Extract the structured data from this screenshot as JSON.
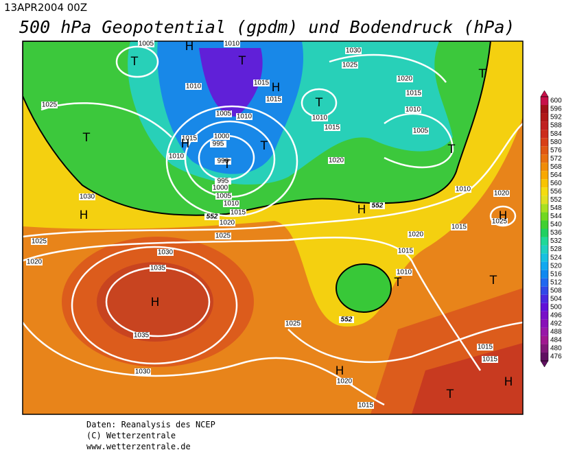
{
  "header": {
    "date": "13APR2004 00Z",
    "title": "500 hPa Geopotential (gpdm) und Bodendruck (hPa)"
  },
  "map": {
    "isobar_labels": [
      1005,
      1010,
      1030,
      1025,
      1020,
      1015,
      1010,
      1015,
      1015,
      1010,
      1025,
      1005,
      1010,
      1010,
      1015,
      1005,
      1015,
      1000,
      995,
      1010,
      990,
      1020,
      995,
      1000,
      1005,
      1010,
      1015,
      1030,
      1020,
      1025,
      1010,
      1020,
      1015,
      1020,
      1025,
      1015,
      1020,
      1030,
      1035,
      1010,
      1025,
      1035,
      1030,
      1020,
      1015,
      1015,
      1015,
      1025
    ],
    "contour_labels": [
      552,
      552,
      552
    ],
    "pressure_centers": [
      "T",
      "H",
      "T",
      "H",
      "T",
      "T",
      "T",
      "H",
      "T",
      "T",
      "T",
      "H",
      "H",
      "H",
      "T",
      "H",
      "T",
      "H",
      "T",
      "H"
    ]
  },
  "colorbar": {
    "levels": [
      600,
      596,
      592,
      588,
      584,
      580,
      576,
      572,
      568,
      564,
      560,
      556,
      552,
      548,
      544,
      540,
      536,
      532,
      528,
      524,
      520,
      516,
      512,
      508,
      504,
      500,
      496,
      492,
      488,
      484,
      480,
      476
    ],
    "colors": [
      "#c8104a",
      "#a01018",
      "#b01818",
      "#c02020",
      "#cc2c1c",
      "#d84018",
      "#e05814",
      "#e87010",
      "#f08c08",
      "#f8a800",
      "#f8c400",
      "#f4dc10",
      "#e0e020",
      "#a8e020",
      "#70d820",
      "#40d030",
      "#20d060",
      "#20d898",
      "#20d0c0",
      "#18c0e0",
      "#10a8f0",
      "#1088f0",
      "#2068f0",
      "#3048e8",
      "#4828e0",
      "#6010d8",
      "#7810c8",
      "#8810b8",
      "#9818a8",
      "#a01890",
      "#801878",
      "#601060"
    ]
  },
  "footer": {
    "lines": [
      "Daten: Reanalysis des NCEP",
      "(C) Wetterzentrale",
      "www.wetterzentrale.de"
    ]
  }
}
